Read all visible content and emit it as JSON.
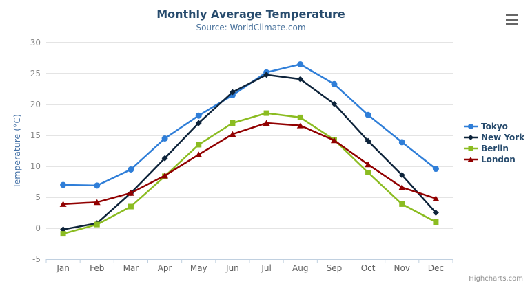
{
  "chart_data": {
    "type": "line",
    "title": "Monthly Average Temperature",
    "subtitle": "Source: WorldClimate.com",
    "categories": [
      "Jan",
      "Feb",
      "Mar",
      "Apr",
      "May",
      "Jun",
      "Jul",
      "Aug",
      "Sep",
      "Oct",
      "Nov",
      "Dec"
    ],
    "xlabel": "",
    "ylabel": "Temperature (°C)",
    "ylim": [
      -5,
      30
    ],
    "yticks": [
      -5,
      0,
      5,
      10,
      15,
      20,
      25,
      30
    ],
    "grid": true,
    "legend_position": "right",
    "series": [
      {
        "name": "Tokyo",
        "color": "#2f7ed8",
        "marker": "circle",
        "values": [
          7.0,
          6.9,
          9.5,
          14.5,
          18.2,
          21.5,
          25.2,
          26.5,
          23.3,
          18.3,
          13.9,
          9.6
        ]
      },
      {
        "name": "New York",
        "color": "#0d233a",
        "marker": "diamond",
        "values": [
          -0.2,
          0.8,
          5.7,
          11.3,
          17.0,
          22.0,
          24.8,
          24.1,
          20.1,
          14.1,
          8.6,
          2.5
        ]
      },
      {
        "name": "Berlin",
        "color": "#8bbc21",
        "marker": "square",
        "values": [
          -0.9,
          0.6,
          3.5,
          8.4,
          13.5,
          17.0,
          18.6,
          17.9,
          14.3,
          9.0,
          3.9,
          1.0
        ]
      },
      {
        "name": "London",
        "color": "#910000",
        "marker": "triangle",
        "values": [
          3.9,
          4.2,
          5.7,
          8.5,
          11.9,
          15.2,
          17.0,
          16.6,
          14.2,
          10.3,
          6.6,
          4.8
        ]
      }
    ],
    "colors": {
      "title": "#274b6d",
      "subtitle": "#4d759e",
      "axis_title": "#4572a7",
      "x_labels": "#606060",
      "y_labels": "#888888",
      "gridline": "#c8c8c8",
      "axis_line": "#c0d0e0",
      "legend_text": "#274b6d",
      "menu_icon": "#666666",
      "credits_text": "#909090"
    }
  },
  "ui": {
    "context_menu_icon": "hamburger-menu-icon",
    "credits": "Highcharts.com"
  }
}
